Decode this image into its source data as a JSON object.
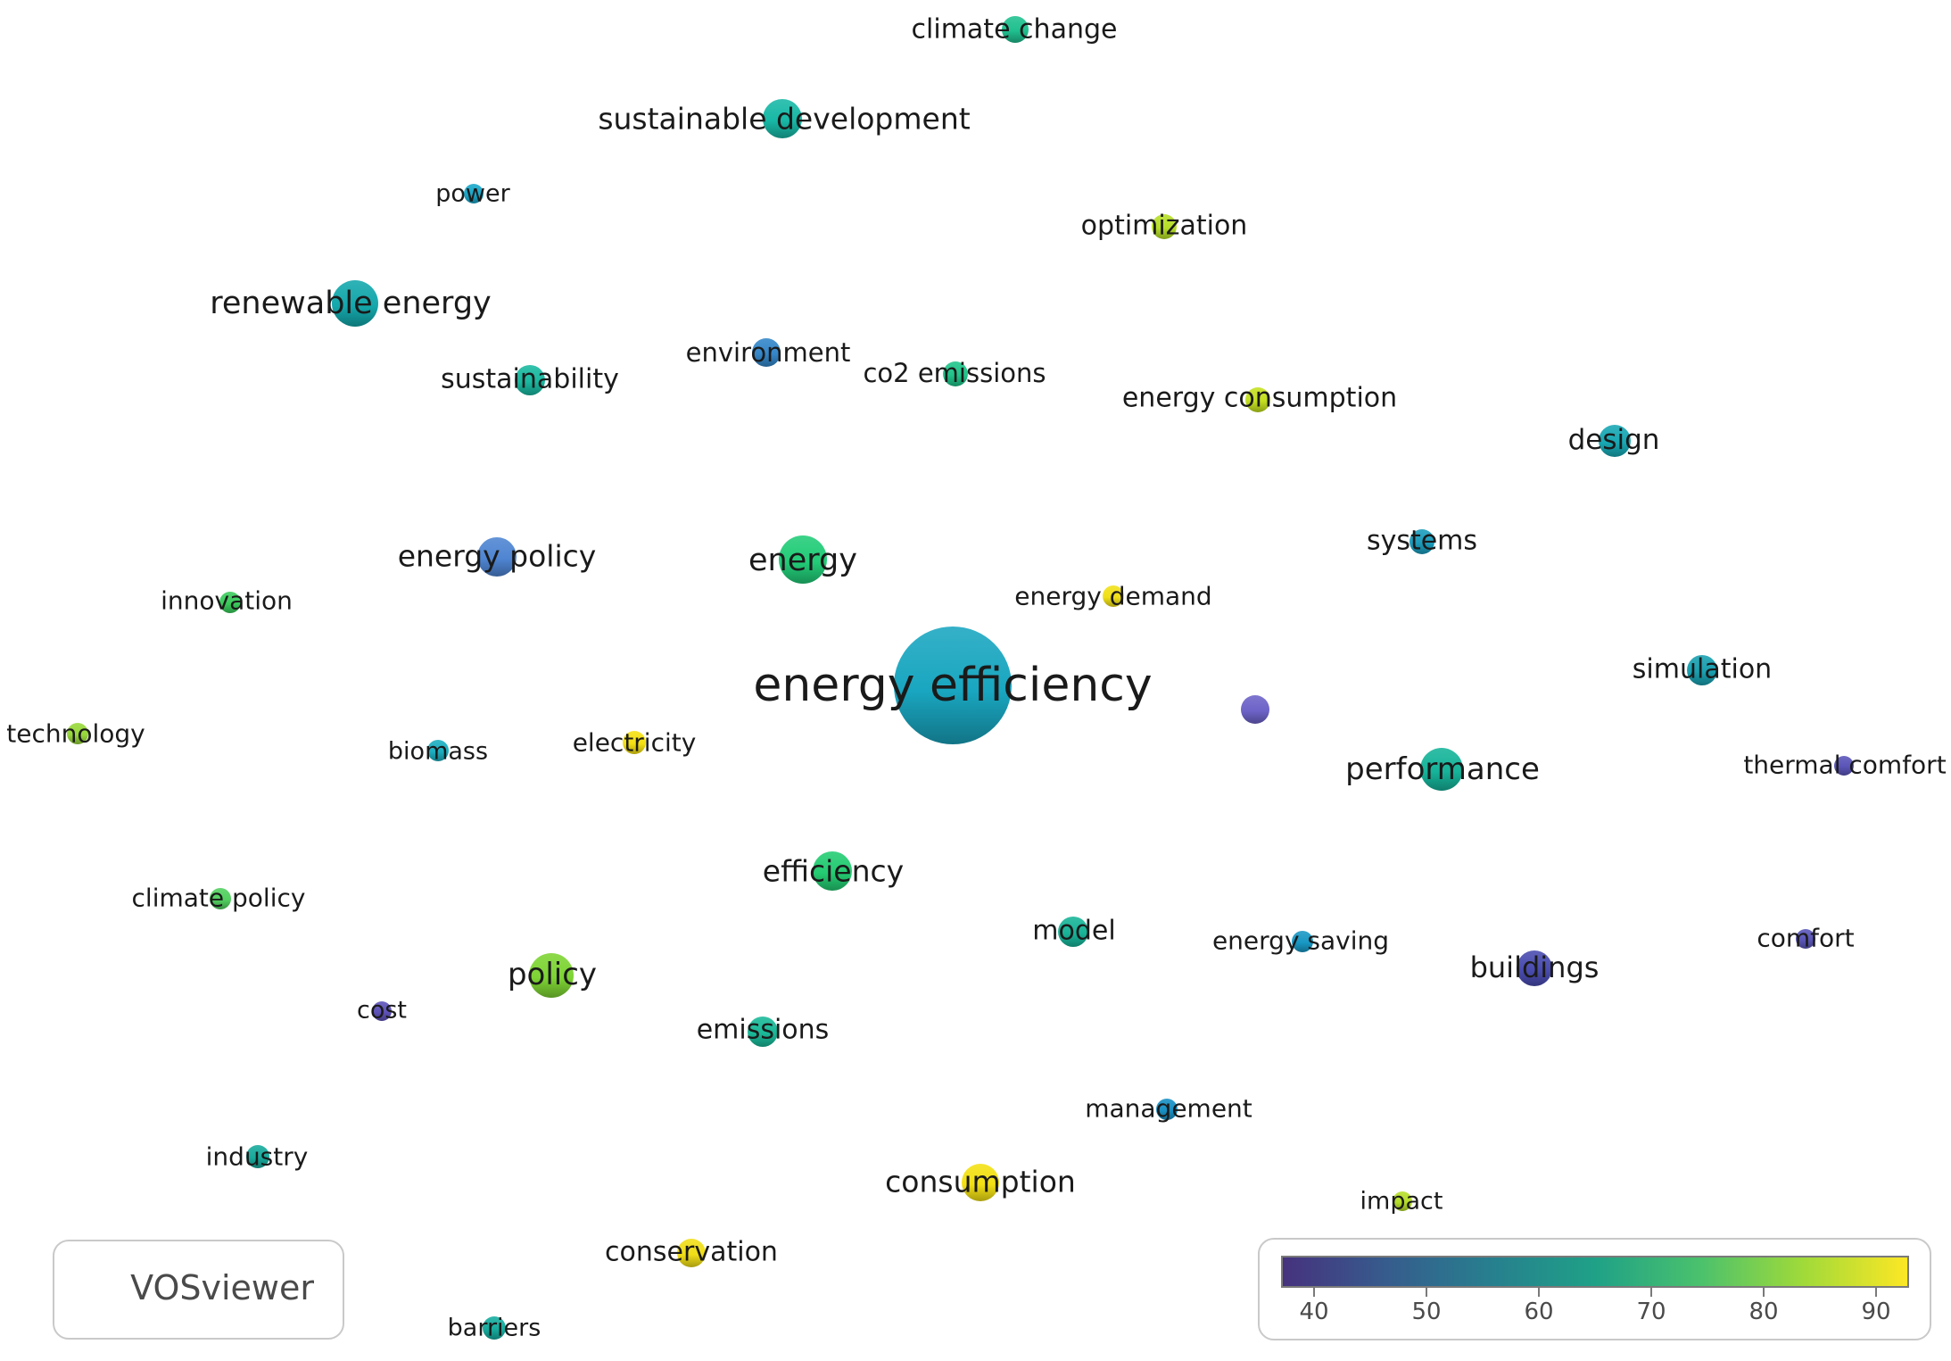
{
  "brand": "VOSviewer",
  "color_scale": {
    "stops": [
      "#46327e",
      "#365c8d",
      "#277f8e",
      "#1fa187",
      "#4ac16d",
      "#a0da39",
      "#fde725"
    ],
    "ticks": [
      "40",
      "50",
      "60",
      "70",
      "80",
      "90"
    ]
  },
  "nodes": [
    {
      "id": "energy-efficiency",
      "label": "energy efficiency",
      "color": "#19a6c0"
    },
    {
      "id": "climate-change",
      "label": "climate change",
      "color": "#20c08f"
    },
    {
      "id": "sustainable-development",
      "label": "sustainable development",
      "color": "#18b8a6"
    },
    {
      "id": "power",
      "label": "power",
      "color": "#19a6c8"
    },
    {
      "id": "optimization",
      "label": "optimization",
      "color": "#b6de28"
    },
    {
      "id": "renewable-energy",
      "label": "renewable energy",
      "color": "#14a8ac"
    },
    {
      "id": "environment",
      "label": "environment",
      "color": "#3486c8"
    },
    {
      "id": "co2-emissions",
      "label": "co2 emissions",
      "color": "#20c48a"
    },
    {
      "id": "sustainability",
      "label": "sustainability",
      "color": "#1ab8a0"
    },
    {
      "id": "energy-consumption",
      "label": "energy consumption",
      "color": "#c4e020"
    },
    {
      "id": "design",
      "label": "design",
      "color": "#18a8b4"
    },
    {
      "id": "energy-policy",
      "label": "energy policy",
      "color": "#4f85d2"
    },
    {
      "id": "energy",
      "label": "energy",
      "color": "#22cc78"
    },
    {
      "id": "systems",
      "label": "systems",
      "color": "#1c9cbc"
    },
    {
      "id": "innovation",
      "label": "innovation",
      "color": "#3acb5c"
    },
    {
      "id": "energy-demand",
      "label": "energy demand",
      "color": "#f0e018"
    },
    {
      "id": "unlabeled",
      "label": "",
      "color": "#6d63c8"
    },
    {
      "id": "simulation",
      "label": "simulation",
      "color": "#1aa0b0"
    },
    {
      "id": "technology",
      "label": "technology",
      "color": "#98d83a"
    },
    {
      "id": "biomass",
      "label": "biomass",
      "color": "#1caec0"
    },
    {
      "id": "electricity",
      "label": "electricity",
      "color": "#f4e012"
    },
    {
      "id": "performance",
      "label": "performance",
      "color": "#16b49a"
    },
    {
      "id": "thermal-comfort",
      "label": "thermal comfort",
      "color": "#5a54b8"
    },
    {
      "id": "efficiency",
      "label": "efficiency",
      "color": "#24cc72"
    },
    {
      "id": "climate-policy",
      "label": "climate policy",
      "color": "#52d060"
    },
    {
      "id": "model",
      "label": "model",
      "color": "#18b498"
    },
    {
      "id": "energy-saving",
      "label": "energy saving",
      "color": "#1898c4"
    },
    {
      "id": "comfort",
      "label": "comfort",
      "color": "#5a56b8"
    },
    {
      "id": "buildings",
      "label": "buildings",
      "color": "#4a4cb0"
    },
    {
      "id": "policy",
      "label": "policy",
      "color": "#7ed434"
    },
    {
      "id": "cost",
      "label": "cost",
      "color": "#5e52b8"
    },
    {
      "id": "emissions",
      "label": "emissions",
      "color": "#1ab898"
    },
    {
      "id": "management",
      "label": "management",
      "color": "#1890c4"
    },
    {
      "id": "industry",
      "label": "industry",
      "color": "#18aa9c"
    },
    {
      "id": "consumption",
      "label": "consumption",
      "color": "#f2e014"
    },
    {
      "id": "impact",
      "label": "impact",
      "color": "#b6de2a"
    },
    {
      "id": "conservation",
      "label": "conservation",
      "color": "#f0de18"
    },
    {
      "id": "barriers",
      "label": "barriers",
      "color": "#16ac9e"
    }
  ]
}
